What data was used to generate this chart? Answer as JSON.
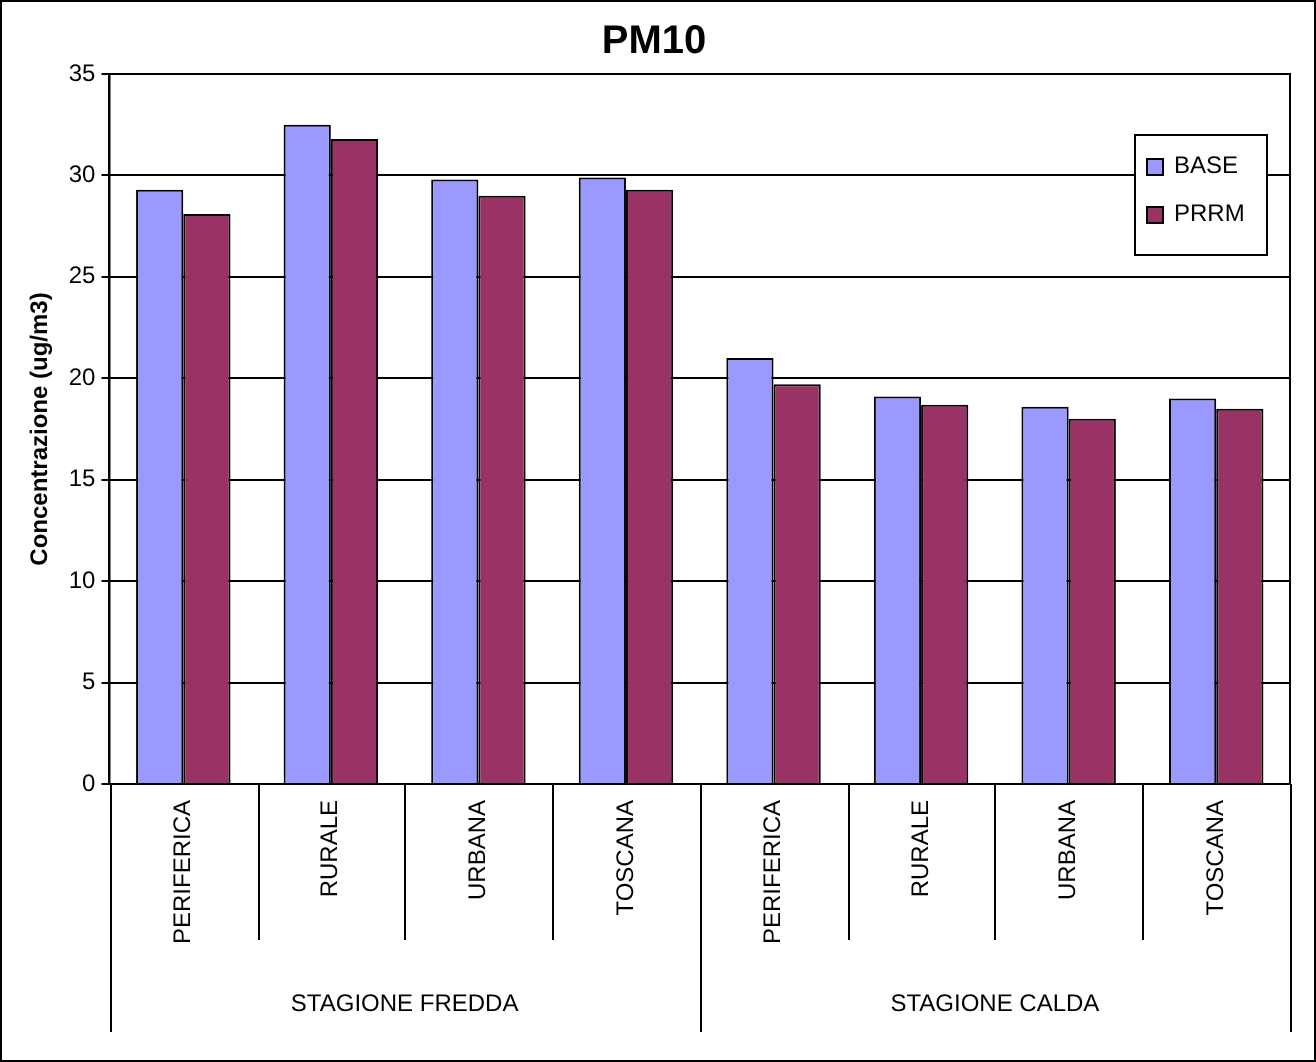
{
  "chart_data": {
    "type": "bar",
    "title": "PM10",
    "ylabel": "Concentrazione (ug/m3)",
    "categories": [
      "PERIFERICA",
      "RURALE",
      "URBANA",
      "TOSCANA",
      "PERIFERICA",
      "RURALE",
      "URBANA",
      "TOSCANA"
    ],
    "series": [
      {
        "name": "BASE",
        "color": "#9999ff",
        "values": [
          29.3,
          32.5,
          29.8,
          29.9,
          21.0,
          19.1,
          18.6,
          19.0
        ]
      },
      {
        "name": "PRRM",
        "color": "#993366",
        "values": [
          28.1,
          31.8,
          29.0,
          29.3,
          19.7,
          18.7,
          18.0,
          18.5
        ]
      }
    ],
    "annotations": [
      "STAGIONE FREDDA",
      "STAGIONE CALDA"
    ],
    "ylim": [
      0,
      35
    ],
    "yticks": [
      0,
      5,
      10,
      15,
      20,
      25,
      30,
      35
    ],
    "grid": "y",
    "legend": "top right"
  }
}
